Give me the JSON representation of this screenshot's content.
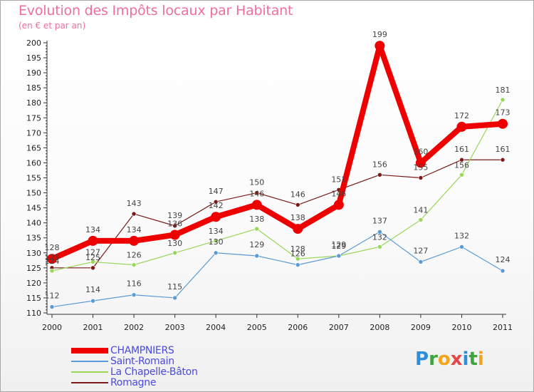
{
  "header": {
    "title": "Evolution des Impôts locaux par Habitant",
    "subtitle": "(en € et par an)"
  },
  "logo": {
    "text": "Proxiti",
    "letters": [
      {
        "ch": "P",
        "color": "#2e8fd8"
      },
      {
        "ch": "r",
        "color": "#3ca63c"
      },
      {
        "ch": "o",
        "color": "#f2a51a"
      },
      {
        "ch": "x",
        "color": "#e64646"
      },
      {
        "ch": "i",
        "color": "#2e8fd8"
      },
      {
        "ch": "t",
        "color": "#3ca63c"
      },
      {
        "ch": "i",
        "color": "#f2a51a"
      }
    ]
  },
  "chart_data": {
    "type": "line",
    "title": "Evolution des Impôts locaux par Habitant",
    "subtitle": "(en € et par an)",
    "xlabel": "",
    "ylabel": "",
    "x": [
      "2000",
      "2001",
      "2002",
      "2003",
      "2004",
      "2005",
      "2006",
      "2007",
      "2008",
      "2009",
      "2010",
      "2011"
    ],
    "ylim": [
      110,
      200
    ],
    "yticks": [
      110,
      115,
      120,
      125,
      130,
      135,
      140,
      145,
      150,
      155,
      160,
      165,
      170,
      175,
      180,
      185,
      190,
      195,
      200
    ],
    "grid": false,
    "legend_position": "bottom-left",
    "series": [
      {
        "name": "Romagne",
        "color": "#7b1a1a",
        "values": [
          125,
          125,
          143,
          139,
          147,
          150,
          146,
          151,
          156,
          155,
          161,
          161
        ]
      },
      {
        "name": "La Chapelle-Bâton",
        "color": "#99d65a",
        "values": [
          124,
          127,
          126,
          130,
          134,
          138,
          128,
          129,
          132,
          141,
          156,
          181
        ]
      },
      {
        "name": "Saint-Romain",
        "color": "#5b9bd5",
        "values": [
          112,
          114,
          116,
          115,
          130,
          129,
          126,
          129,
          137,
          127,
          132,
          124
        ]
      },
      {
        "name": "CHAMPNIERS",
        "color": "#ee0000",
        "values": [
          128,
          134,
          134,
          136,
          142,
          146,
          138,
          146,
          199,
          160,
          172,
          173
        ]
      }
    ],
    "legend_order": [
      "CHAMPNIERS",
      "Saint-Romain",
      "La Chapelle-Bâton",
      "Romagne"
    ]
  }
}
